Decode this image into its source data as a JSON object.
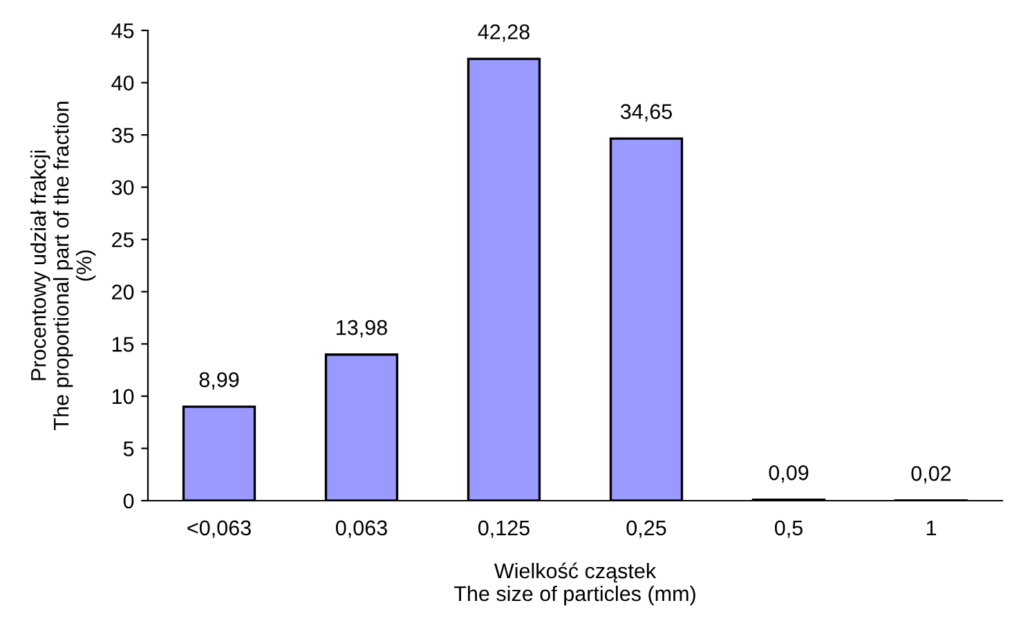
{
  "chart_data": {
    "type": "bar",
    "xlabel": "Wielkość cząstek\nThe size of particles (mm)",
    "ylabel": "Procentowy udział frakcji\nThe proportional part of the fraction\n(%)",
    "categories": [
      "<0,063",
      "0,063",
      "0,125",
      "0,25",
      "0,5",
      "1"
    ],
    "values": [
      8.99,
      13.98,
      42.28,
      34.65,
      0.09,
      0.02
    ],
    "value_labels": [
      "8,99",
      "13,98",
      "42,28",
      "34,65",
      "0,09",
      "0,02"
    ],
    "color": "#9999ff",
    "ylim": [
      0,
      45
    ],
    "yticks": [
      0,
      5,
      10,
      15,
      20,
      25,
      30,
      35,
      40,
      45
    ],
    "grid": false,
    "legend": false
  }
}
